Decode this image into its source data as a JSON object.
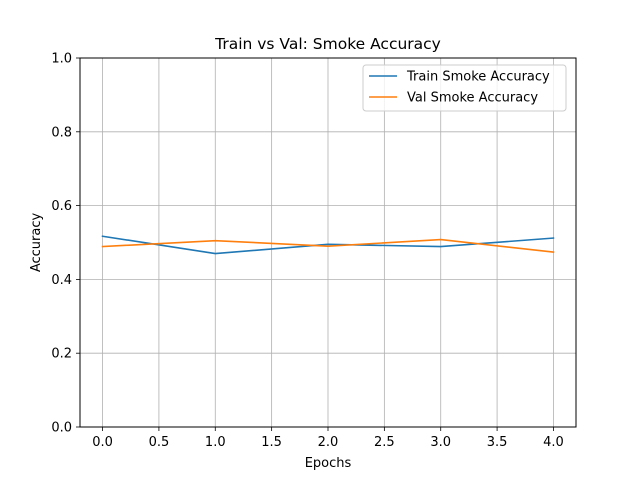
{
  "chart_data": {
    "type": "line",
    "title": "Train vs Val: Smoke Accuracy",
    "xlabel": "Epochs",
    "ylabel": "Accuracy",
    "x": [
      0,
      1,
      2,
      3,
      4
    ],
    "xlim": [
      -0.2,
      4.2
    ],
    "ylim": [
      0.0,
      1.0
    ],
    "xticks": [
      "0.0",
      "0.5",
      "1.0",
      "1.5",
      "2.0",
      "2.5",
      "3.0",
      "3.5",
      "4.0"
    ],
    "yticks": [
      "0.0",
      "0.2",
      "0.4",
      "0.6",
      "0.8",
      "1.0"
    ],
    "grid": true,
    "legend_position": "top-right",
    "series": [
      {
        "name": "Train Smoke Accuracy",
        "color": "#1f77b4",
        "values": [
          0.517,
          0.47,
          0.495,
          0.489,
          0.512
        ]
      },
      {
        "name": "Val Smoke Accuracy",
        "color": "#ff7f0e",
        "values": [
          0.489,
          0.505,
          0.49,
          0.508,
          0.474
        ]
      }
    ]
  }
}
